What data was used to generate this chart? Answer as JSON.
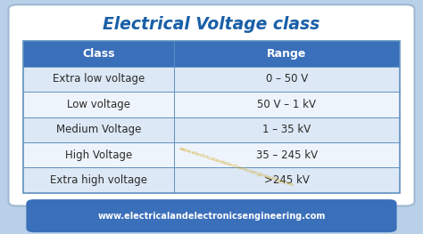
{
  "title": "Electrical Voltage class",
  "title_color": "#1a5fa8",
  "title_fontsize": 13.5,
  "header": [
    "Class",
    "Range"
  ],
  "rows": [
    [
      "Extra low voltage",
      "0 – 50 V"
    ],
    [
      "Low voltage",
      "50 V – 1 kV"
    ],
    [
      "Medium Voltage",
      "1 – 35 kV"
    ],
    [
      "High Voltage",
      "35 – 245 kV"
    ],
    [
      "Extra high voltage",
      ">245 kV"
    ]
  ],
  "header_bg": "#3a6fba",
  "header_fg": "#ffffff",
  "row_bg_light": "#dce8f5",
  "row_bg_white": "#eef4fb",
  "row_fg": "#2a2a2a",
  "border_color": "#6090c0",
  "bg_outer": "#b8d0e8",
  "bg_inner": "#ffffff",
  "footer_text": "www.electricalandelectronicsengineering.com",
  "footer_bg": "#3a6fba",
  "footer_fg": "#ffffff",
  "watermark": "www.electricalandelectronicsengineering.com",
  "watermark_color": "#d4a820",
  "cell_fontsize": 8.5,
  "header_fontsize": 9.0,
  "col_split": 0.4
}
